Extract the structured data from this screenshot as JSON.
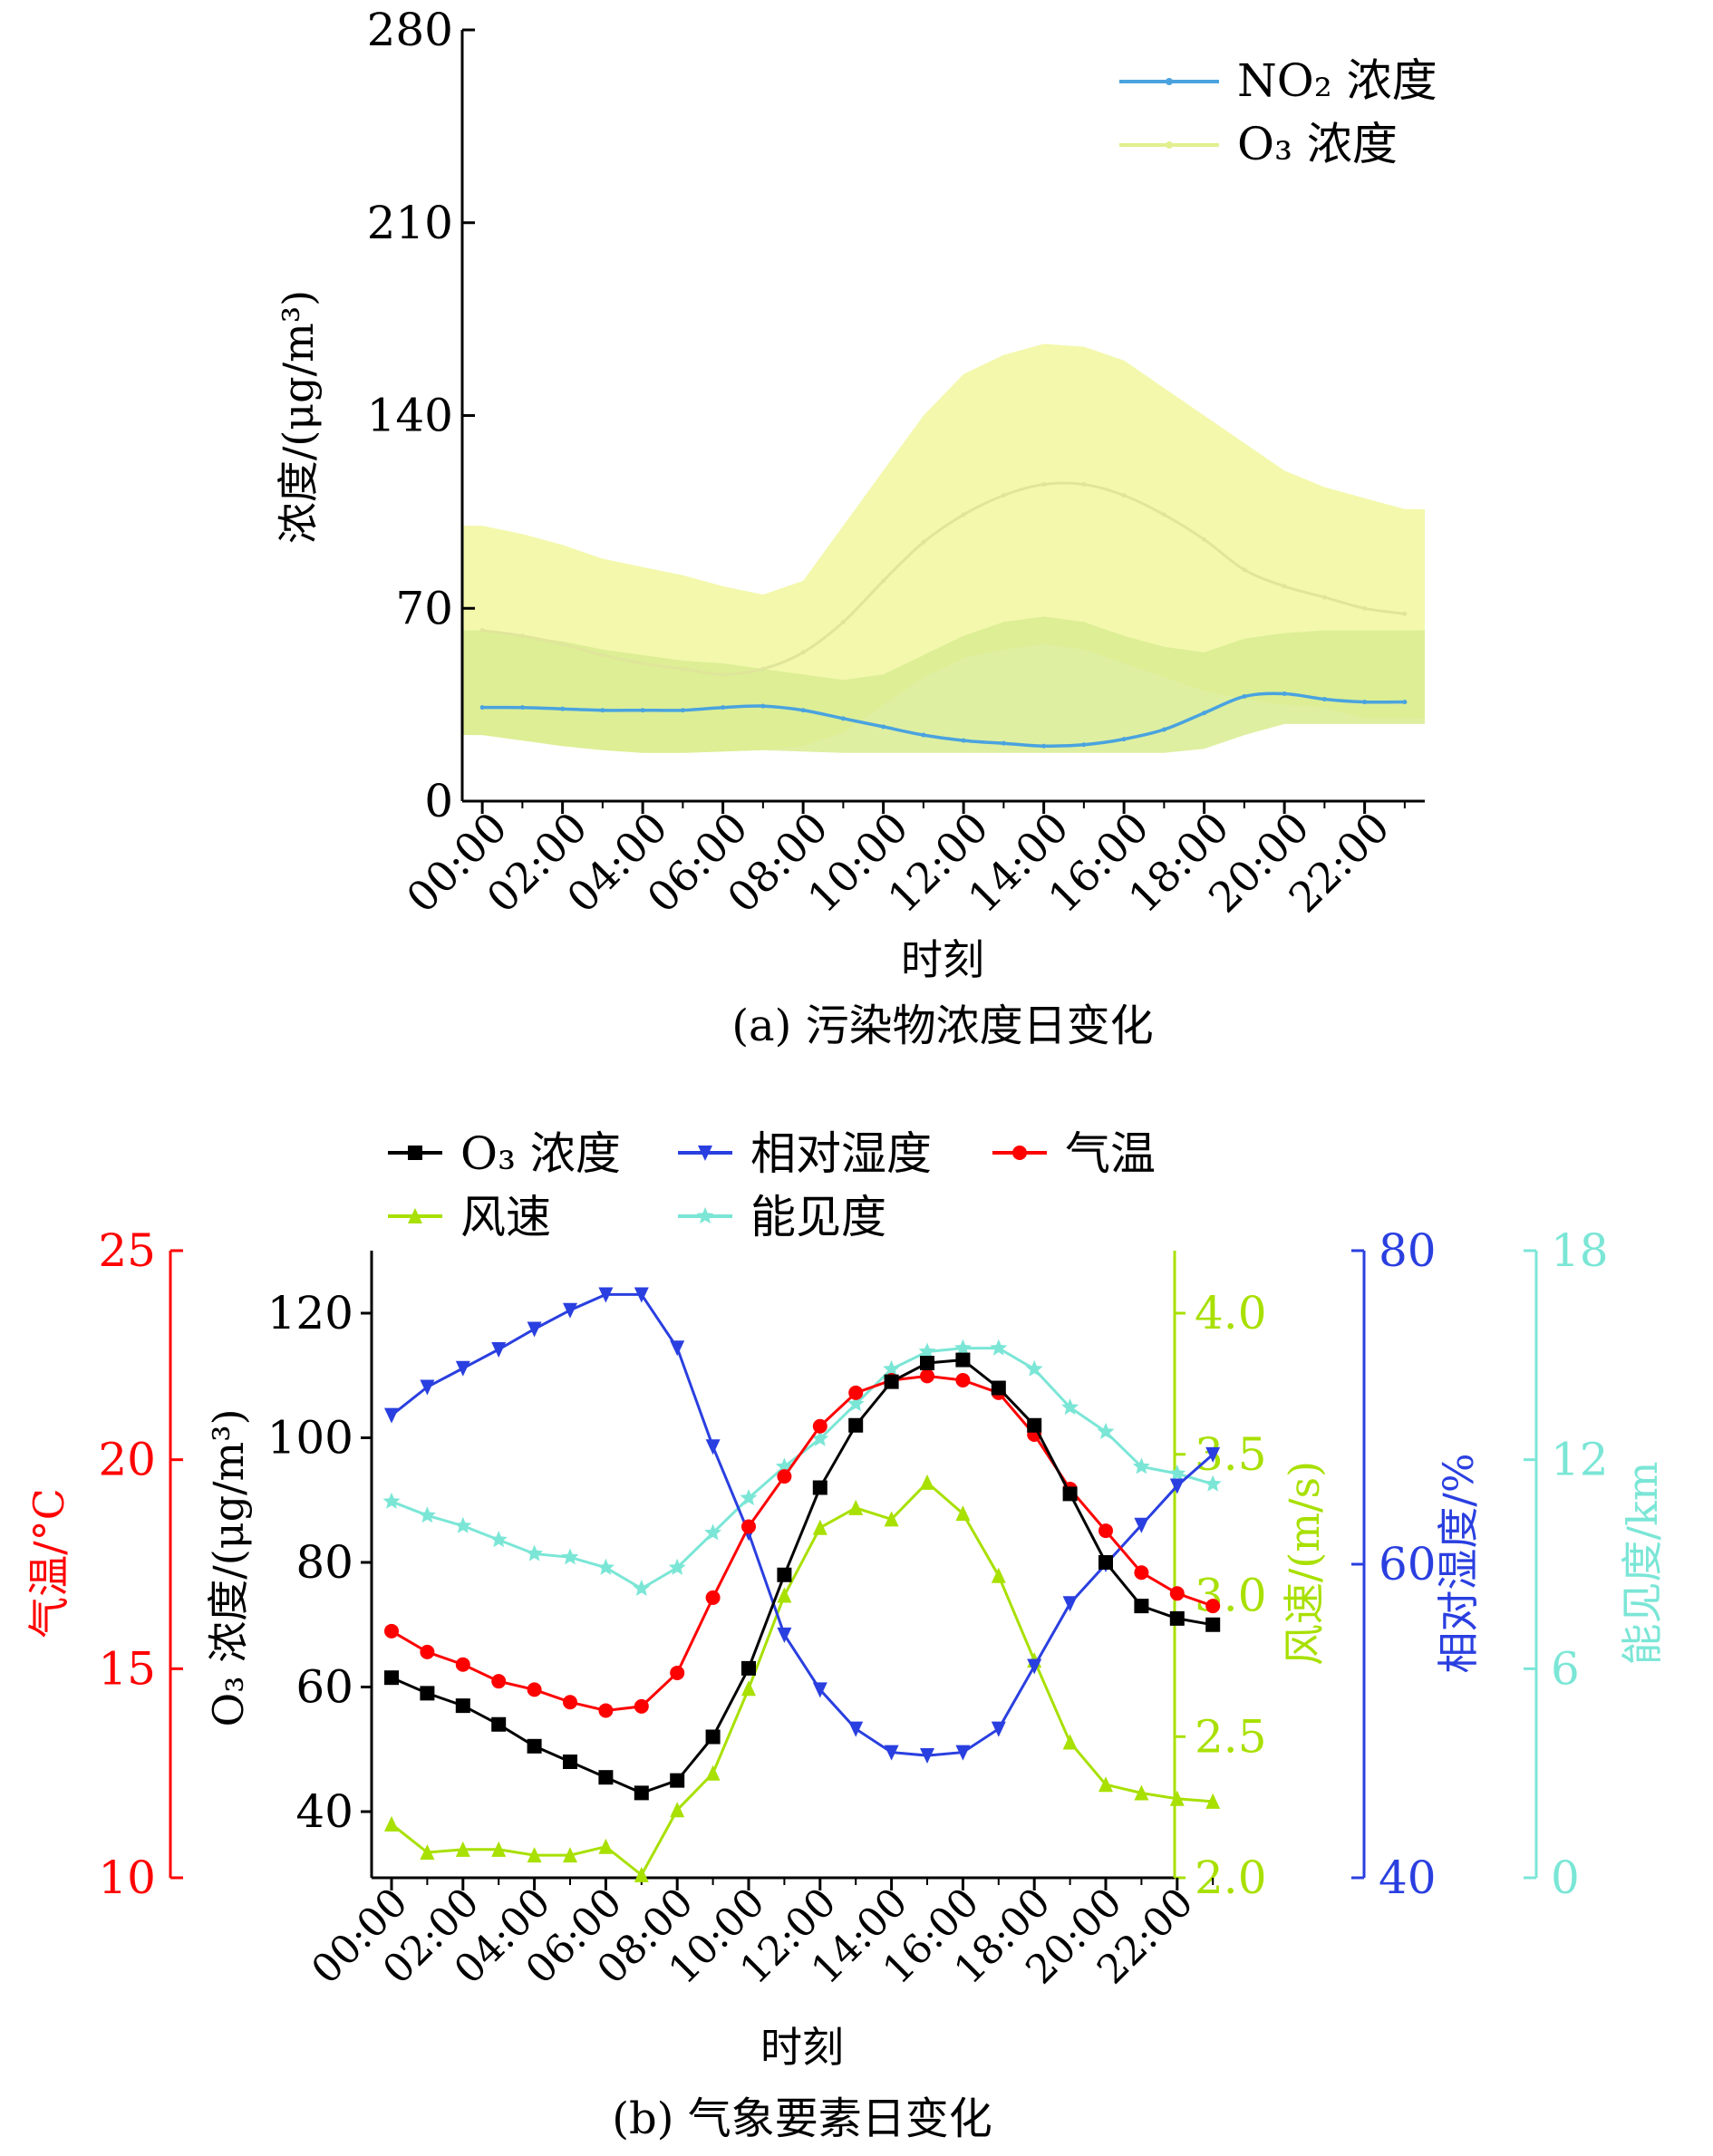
{
  "figure": {
    "panel_a_caption": "(a) 污染物浓度日变化",
    "panel_b_caption": "(b) 气象要素日变化"
  },
  "chart_data": [
    {
      "type": "line",
      "panel": "a",
      "xlabel": "时刻",
      "ylabel": "浓度/(μg/m³)",
      "ylim": [
        0,
        280
      ],
      "yticks": [
        0,
        70,
        140,
        210,
        280
      ],
      "x": [
        "00:00",
        "01:00",
        "02:00",
        "03:00",
        "04:00",
        "05:00",
        "06:00",
        "07:00",
        "08:00",
        "09:00",
        "10:00",
        "11:00",
        "12:00",
        "13:00",
        "14:00",
        "15:00",
        "16:00",
        "17:00",
        "18:00",
        "19:00",
        "20:00",
        "21:00",
        "22:00",
        "23:00"
      ],
      "xtick_labels": [
        "00:00",
        "02:00",
        "04:00",
        "06:00",
        "08:00",
        "10:00",
        "12:00",
        "14:00",
        "16:00",
        "18:00",
        "20:00",
        "22:00"
      ],
      "legend_position": "top-right",
      "series": [
        {
          "name": "NO₂ 浓度",
          "color": "#4aa3df",
          "values": [
            34,
            34,
            33.5,
            33,
            33,
            33,
            34,
            34.5,
            33,
            30,
            27,
            24,
            22,
            21,
            20,
            20.5,
            22.5,
            26,
            32,
            38,
            39,
            37,
            36,
            36
          ],
          "band_lower": [
            24,
            22,
            20,
            18.5,
            17.5,
            17.5,
            18,
            18.5,
            18,
            17.5,
            17.5,
            17.5,
            17.5,
            17.5,
            17.5,
            17.5,
            17.5,
            17.5,
            19,
            24,
            28,
            28,
            28,
            28
          ],
          "band_upper": [
            62,
            60,
            58,
            55,
            53,
            51,
            50,
            48,
            46,
            44,
            46,
            53,
            60,
            65,
            67,
            65,
            60,
            56,
            54,
            59,
            61,
            62,
            62,
            62
          ]
        },
        {
          "name": "O₃ 浓度",
          "color": "#e2ef8f",
          "values": [
            62,
            60,
            57,
            53,
            50,
            48,
            46,
            48,
            54,
            65,
            80,
            94,
            104,
            111,
            115,
            115,
            111,
            104,
            95,
            84,
            78,
            74,
            70,
            68
          ],
          "band_lower": [
            24,
            22,
            20,
            18.5,
            17.5,
            17.5,
            18,
            18.5,
            20,
            25,
            35,
            45,
            52,
            55,
            57,
            55,
            50,
            45,
            40,
            37,
            35,
            34,
            30,
            30
          ],
          "band_upper": [
            100,
            97,
            93,
            88,
            85,
            82,
            78,
            75,
            80,
            100,
            120,
            140,
            155,
            162,
            166,
            165,
            160,
            150,
            140,
            130,
            120,
            114,
            110,
            106
          ]
        }
      ]
    },
    {
      "type": "line",
      "panel": "b",
      "xlabel": "时刻",
      "x": [
        "00:00",
        "01:00",
        "02:00",
        "03:00",
        "04:00",
        "05:00",
        "06:00",
        "07:00",
        "08:00",
        "09:00",
        "10:00",
        "11:00",
        "12:00",
        "13:00",
        "14:00",
        "15:00",
        "16:00",
        "17:00",
        "18:00",
        "19:00",
        "20:00",
        "21:00",
        "22:00",
        "23:00"
      ],
      "xtick_labels": [
        "00:00",
        "02:00",
        "04:00",
        "06:00",
        "08:00",
        "10:00",
        "12:00",
        "14:00",
        "16:00",
        "18:00",
        "20:00",
        "22:00"
      ],
      "legend_position": "top",
      "axes": [
        {
          "id": "o3",
          "label": "O₃ 浓度/(μg/m³)",
          "color": "#000000",
          "range": [
            30,
            130
          ],
          "ticks": [
            40,
            60,
            80,
            100,
            120
          ]
        },
        {
          "id": "temp",
          "label": "气温/°C",
          "color": "#ff0000",
          "range": [
            10,
            25
          ],
          "ticks": [
            10,
            15,
            20,
            25
          ]
        },
        {
          "id": "wind",
          "label": "风速/(m/s)",
          "color": "#a8e000",
          "range": [
            2.0,
            4.2
          ],
          "ticks": [
            "2.0",
            "2.5",
            "3.0",
            "3.5",
            "4.0"
          ]
        },
        {
          "id": "rh",
          "label": "相对湿度/%",
          "color": "#2a3fe0",
          "range": [
            40,
            80
          ],
          "ticks": [
            40,
            60,
            80
          ]
        },
        {
          "id": "vis",
          "label": "能见度/km",
          "color": "#7be6d6",
          "range": [
            0,
            18
          ],
          "ticks": [
            0,
            6,
            12,
            18
          ]
        }
      ],
      "series": [
        {
          "name": "O₃ 浓度",
          "axis": "o3",
          "color": "#000000",
          "marker": "square",
          "values": [
            61.5,
            59,
            57,
            54,
            50.5,
            48,
            45.5,
            43,
            45,
            52,
            63,
            78,
            92,
            102,
            109,
            112,
            112.5,
            108,
            102,
            91,
            80,
            73,
            71,
            70
          ]
        },
        {
          "name": "相对湿度",
          "axis": "rh",
          "color": "#2a3fe0",
          "marker": "triangle-down",
          "values": [
            69.5,
            71.3,
            72.5,
            73.7,
            75,
            76.2,
            77.2,
            77.2,
            73.8,
            67.5,
            62,
            55.5,
            52,
            49.5,
            48,
            47.8,
            48,
            49.5,
            53.5,
            57.5,
            60,
            62.5,
            65,
            67
          ]
        },
        {
          "name": "气温",
          "axis": "temp",
          "color": "#ff0000",
          "marker": "circle",
          "values": [
            15.9,
            15.4,
            15.1,
            14.7,
            14.5,
            14.2,
            14.0,
            14.1,
            14.9,
            16.7,
            18.4,
            19.6,
            20.8,
            21.6,
            21.9,
            22.0,
            21.9,
            21.6,
            20.6,
            19.3,
            18.3,
            17.3,
            16.8,
            16.5
          ]
        },
        {
          "name": "风速",
          "axis": "wind",
          "color": "#a8e000",
          "marker": "triangle-up",
          "values": [
            2.19,
            2.09,
            2.1,
            2.1,
            2.08,
            2.08,
            2.11,
            2.01,
            2.24,
            2.37,
            2.67,
            3.0,
            3.24,
            3.31,
            3.27,
            3.4,
            3.29,
            3.07,
            2.77,
            2.48,
            2.33,
            2.3,
            2.28,
            2.27
          ]
        },
        {
          "name": "能见度",
          "axis": "vis",
          "color": "#7be6d6",
          "marker": "star",
          "values": [
            10.8,
            10.4,
            10.1,
            9.7,
            9.3,
            9.2,
            8.9,
            8.3,
            8.9,
            9.9,
            10.9,
            11.8,
            12.6,
            13.6,
            14.6,
            15.1,
            15.2,
            15.2,
            14.6,
            13.5,
            12.8,
            11.8,
            11.6,
            11.3
          ]
        }
      ]
    }
  ]
}
